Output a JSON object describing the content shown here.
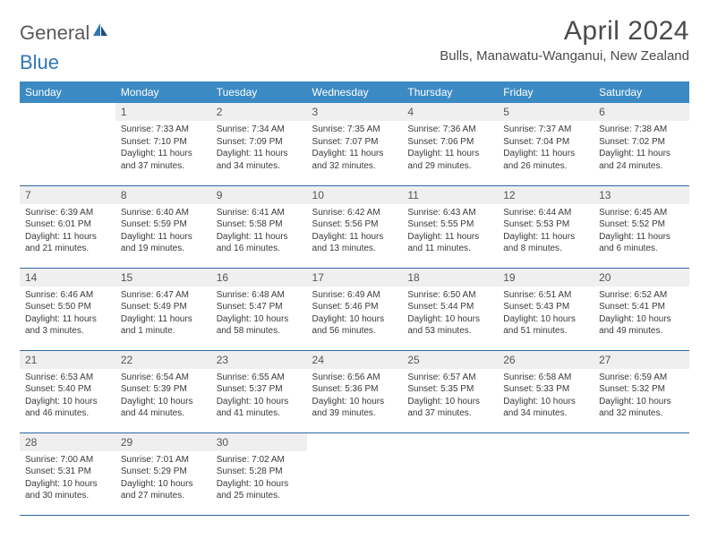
{
  "logo": {
    "part1": "General",
    "part2": "Blue"
  },
  "title": "April 2024",
  "location": "Bulls, Manawatu-Wanganui, New Zealand",
  "colors": {
    "header_bg": "#3b8ac4",
    "header_text": "#ffffff",
    "daynum_bg": "#efefef",
    "row_border": "#2f6aa0",
    "logo_grey": "#5a5a5a",
    "logo_blue": "#2f77b8",
    "body_text": "#3a3a3a"
  },
  "weekdays": [
    "Sunday",
    "Monday",
    "Tuesday",
    "Wednesday",
    "Thursday",
    "Friday",
    "Saturday"
  ],
  "weeks": [
    [
      {
        "n": "",
        "sunrise": "",
        "sunset": "",
        "daylight": ""
      },
      {
        "n": "1",
        "sunrise": "7:33 AM",
        "sunset": "7:10 PM",
        "daylight": "11 hours and 37 minutes."
      },
      {
        "n": "2",
        "sunrise": "7:34 AM",
        "sunset": "7:09 PM",
        "daylight": "11 hours and 34 minutes."
      },
      {
        "n": "3",
        "sunrise": "7:35 AM",
        "sunset": "7:07 PM",
        "daylight": "11 hours and 32 minutes."
      },
      {
        "n": "4",
        "sunrise": "7:36 AM",
        "sunset": "7:06 PM",
        "daylight": "11 hours and 29 minutes."
      },
      {
        "n": "5",
        "sunrise": "7:37 AM",
        "sunset": "7:04 PM",
        "daylight": "11 hours and 26 minutes."
      },
      {
        "n": "6",
        "sunrise": "7:38 AM",
        "sunset": "7:02 PM",
        "daylight": "11 hours and 24 minutes."
      }
    ],
    [
      {
        "n": "7",
        "sunrise": "6:39 AM",
        "sunset": "6:01 PM",
        "daylight": "11 hours and 21 minutes."
      },
      {
        "n": "8",
        "sunrise": "6:40 AM",
        "sunset": "5:59 PM",
        "daylight": "11 hours and 19 minutes."
      },
      {
        "n": "9",
        "sunrise": "6:41 AM",
        "sunset": "5:58 PM",
        "daylight": "11 hours and 16 minutes."
      },
      {
        "n": "10",
        "sunrise": "6:42 AM",
        "sunset": "5:56 PM",
        "daylight": "11 hours and 13 minutes."
      },
      {
        "n": "11",
        "sunrise": "6:43 AM",
        "sunset": "5:55 PM",
        "daylight": "11 hours and 11 minutes."
      },
      {
        "n": "12",
        "sunrise": "6:44 AM",
        "sunset": "5:53 PM",
        "daylight": "11 hours and 8 minutes."
      },
      {
        "n": "13",
        "sunrise": "6:45 AM",
        "sunset": "5:52 PM",
        "daylight": "11 hours and 6 minutes."
      }
    ],
    [
      {
        "n": "14",
        "sunrise": "6:46 AM",
        "sunset": "5:50 PM",
        "daylight": "11 hours and 3 minutes."
      },
      {
        "n": "15",
        "sunrise": "6:47 AM",
        "sunset": "5:49 PM",
        "daylight": "11 hours and 1 minute."
      },
      {
        "n": "16",
        "sunrise": "6:48 AM",
        "sunset": "5:47 PM",
        "daylight": "10 hours and 58 minutes."
      },
      {
        "n": "17",
        "sunrise": "6:49 AM",
        "sunset": "5:46 PM",
        "daylight": "10 hours and 56 minutes."
      },
      {
        "n": "18",
        "sunrise": "6:50 AM",
        "sunset": "5:44 PM",
        "daylight": "10 hours and 53 minutes."
      },
      {
        "n": "19",
        "sunrise": "6:51 AM",
        "sunset": "5:43 PM",
        "daylight": "10 hours and 51 minutes."
      },
      {
        "n": "20",
        "sunrise": "6:52 AM",
        "sunset": "5:41 PM",
        "daylight": "10 hours and 49 minutes."
      }
    ],
    [
      {
        "n": "21",
        "sunrise": "6:53 AM",
        "sunset": "5:40 PM",
        "daylight": "10 hours and 46 minutes."
      },
      {
        "n": "22",
        "sunrise": "6:54 AM",
        "sunset": "5:39 PM",
        "daylight": "10 hours and 44 minutes."
      },
      {
        "n": "23",
        "sunrise": "6:55 AM",
        "sunset": "5:37 PM",
        "daylight": "10 hours and 41 minutes."
      },
      {
        "n": "24",
        "sunrise": "6:56 AM",
        "sunset": "5:36 PM",
        "daylight": "10 hours and 39 minutes."
      },
      {
        "n": "25",
        "sunrise": "6:57 AM",
        "sunset": "5:35 PM",
        "daylight": "10 hours and 37 minutes."
      },
      {
        "n": "26",
        "sunrise": "6:58 AM",
        "sunset": "5:33 PM",
        "daylight": "10 hours and 34 minutes."
      },
      {
        "n": "27",
        "sunrise": "6:59 AM",
        "sunset": "5:32 PM",
        "daylight": "10 hours and 32 minutes."
      }
    ],
    [
      {
        "n": "28",
        "sunrise": "7:00 AM",
        "sunset": "5:31 PM",
        "daylight": "10 hours and 30 minutes."
      },
      {
        "n": "29",
        "sunrise": "7:01 AM",
        "sunset": "5:29 PM",
        "daylight": "10 hours and 27 minutes."
      },
      {
        "n": "30",
        "sunrise": "7:02 AM",
        "sunset": "5:28 PM",
        "daylight": "10 hours and 25 minutes."
      },
      {
        "n": "",
        "sunrise": "",
        "sunset": "",
        "daylight": ""
      },
      {
        "n": "",
        "sunrise": "",
        "sunset": "",
        "daylight": ""
      },
      {
        "n": "",
        "sunrise": "",
        "sunset": "",
        "daylight": ""
      },
      {
        "n": "",
        "sunrise": "",
        "sunset": "",
        "daylight": ""
      }
    ]
  ],
  "labels": {
    "sunrise": "Sunrise:",
    "sunset": "Sunset:",
    "daylight": "Daylight:"
  }
}
